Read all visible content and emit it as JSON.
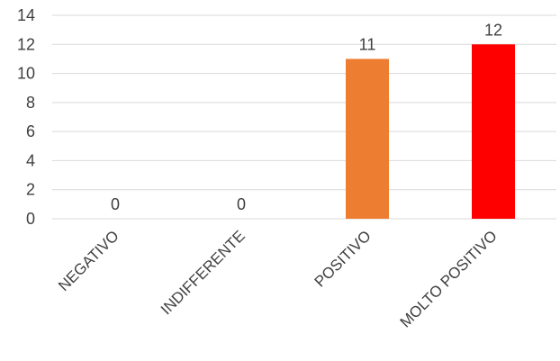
{
  "chart_data": {
    "type": "bar",
    "title": "",
    "xlabel": "",
    "ylabel": "",
    "categories": [
      "NEGATIVO",
      "INDIFFERENTE",
      "POSITIVO",
      "MOLTO POSITIVO"
    ],
    "values": [
      0,
      0,
      11,
      12
    ],
    "data_labels": [
      "0",
      "0",
      "11",
      "12"
    ],
    "bar_colors": [
      "#ed7d31",
      "#ed7d31",
      "#ed7d31",
      "#ff0000"
    ],
    "ylim": [
      0,
      14
    ],
    "y_ticks": [
      0,
      2,
      4,
      6,
      8,
      10,
      12,
      14
    ],
    "y_tick_labels": [
      "0",
      "2",
      "4",
      "6",
      "8",
      "10",
      "12",
      "14"
    ],
    "grid": true,
    "grid_color": "#d9d9d9",
    "text_color": "#404040",
    "legend": "none"
  }
}
